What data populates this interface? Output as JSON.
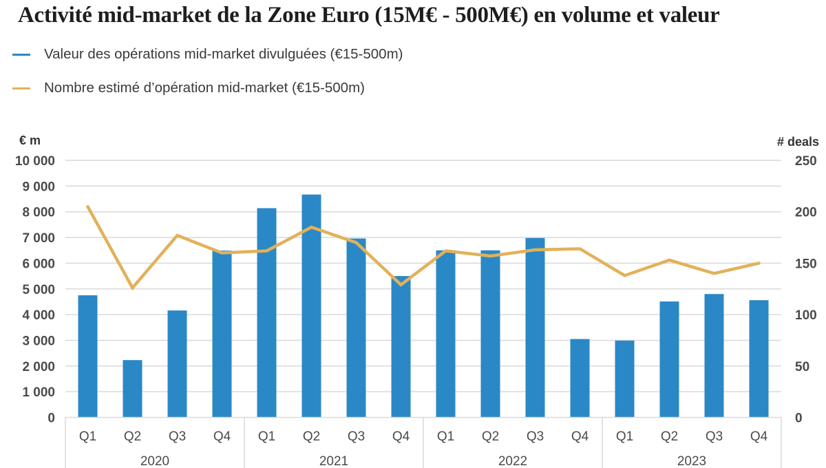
{
  "chart_data": {
    "type": "bar",
    "title": "Activité mid-market de la Zone Euro (15M€ - 500M€) en volume et valeur",
    "categories": [
      "Q1",
      "Q2",
      "Q3",
      "Q4",
      "Q1",
      "Q2",
      "Q3",
      "Q4",
      "Q1",
      "Q2",
      "Q3",
      "Q4",
      "Q1",
      "Q2",
      "Q3",
      "Q4"
    ],
    "groups": [
      {
        "label": "2020",
        "count": 4
      },
      {
        "label": "2021",
        "count": 4
      },
      {
        "label": "2022",
        "count": 4
      },
      {
        "label": "2023",
        "count": 4
      }
    ],
    "series": [
      {
        "name": "Valeur des opérations mid-market divulguées (€15-500m)",
        "type": "bar",
        "axis": "left",
        "color": "#2a88c6",
        "values": [
          4750,
          2230,
          4160,
          6490,
          8140,
          8670,
          6960,
          5500,
          6500,
          6500,
          6980,
          3050,
          2990,
          4510,
          4800,
          4560
        ]
      },
      {
        "name": "Nombre estimé d’opération mid-market (€15-500m)",
        "type": "line",
        "axis": "right",
        "color": "#e2b159",
        "values": [
          205,
          126,
          177,
          160,
          162,
          185,
          170,
          129,
          162,
          157,
          163,
          164,
          138,
          153,
          140,
          150
        ]
      }
    ],
    "y_left": {
      "label": "€ m",
      "range": [
        0,
        10000
      ],
      "ticks": [
        0,
        1000,
        2000,
        3000,
        4000,
        5000,
        6000,
        7000,
        8000,
        9000,
        10000
      ],
      "tick_labels": [
        "0",
        "1 000",
        "2 000",
        "3 000",
        "4 000",
        "5 000",
        "6 000",
        "7 000",
        "8 000",
        "9 000",
        "10 000"
      ]
    },
    "y_right": {
      "label": "# deals",
      "range": [
        0,
        250
      ],
      "ticks": [
        0,
        50,
        100,
        150,
        200,
        250
      ],
      "tick_labels": [
        "0",
        "50",
        "100",
        "150",
        "200",
        "250"
      ]
    },
    "grid": true,
    "legend_position": "top-left"
  }
}
